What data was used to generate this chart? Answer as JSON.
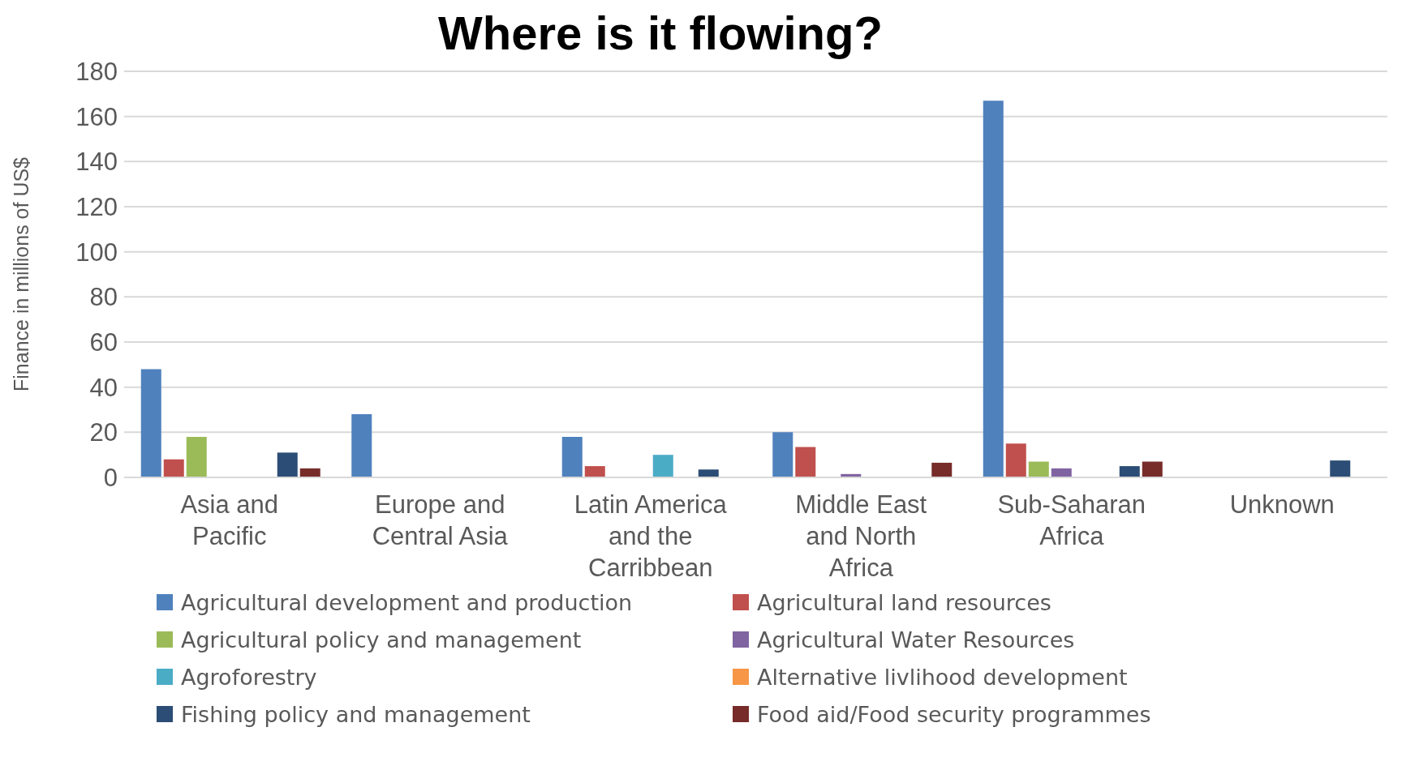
{
  "chart_data": {
    "type": "bar",
    "title": "Where is it flowing?",
    "ylabel": "Finance in millions of US$",
    "categories": [
      "Asia and Pacific",
      "Europe and Central Asia",
      "Latin America and the Carribbean",
      "Middle East and North Africa",
      "Sub-Saharan Africa",
      "Unknown"
    ],
    "series": [
      {
        "name": "Agricultural development and production",
        "color": "#4f81bd",
        "values": [
          48,
          28,
          18,
          20,
          167,
          null
        ]
      },
      {
        "name": "Agricultural land resources",
        "color": "#c0504d",
        "values": [
          8,
          null,
          5,
          13.5,
          15,
          null
        ]
      },
      {
        "name": "Agricultural policy and management",
        "color": "#9bbb59",
        "values": [
          18,
          null,
          null,
          null,
          7,
          null
        ]
      },
      {
        "name": "Agricultural Water Resources",
        "color": "#8064a2",
        "values": [
          null,
          null,
          null,
          1.5,
          4,
          null
        ]
      },
      {
        "name": "Agroforestry",
        "color": "#4bacc6",
        "values": [
          null,
          null,
          10,
          null,
          null,
          null
        ]
      },
      {
        "name": "Alternative livlihood development",
        "color": "#f79646",
        "values": [
          null,
          null,
          null,
          null,
          null,
          null
        ]
      },
      {
        "name": "Fishing policy and management",
        "color": "#2c4d75",
        "values": [
          11,
          null,
          3.5,
          null,
          5,
          7.5
        ]
      },
      {
        "name": "Food aid/Food security programmes",
        "color": "#772c2a",
        "values": [
          4,
          null,
          null,
          6.5,
          7,
          null
        ]
      }
    ],
    "ylim": [
      0,
      180
    ],
    "yticks": [
      0,
      20,
      40,
      60,
      80,
      100,
      120,
      140,
      160,
      180
    ],
    "grid": "y",
    "legend": "bottom"
  }
}
